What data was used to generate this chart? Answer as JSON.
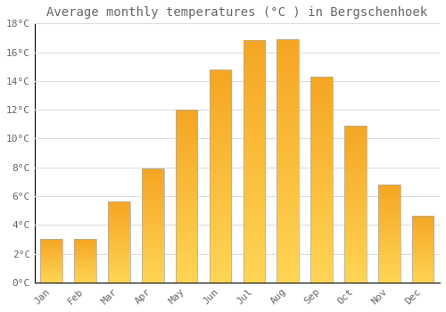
{
  "title": "Average monthly temperatures (°C ) in Bergschenhoek",
  "months": [
    "Jan",
    "Feb",
    "Mar",
    "Apr",
    "May",
    "Jun",
    "Jul",
    "Aug",
    "Sep",
    "Oct",
    "Nov",
    "Dec"
  ],
  "values": [
    3.0,
    3.0,
    5.6,
    7.9,
    12.0,
    14.8,
    16.8,
    16.9,
    14.3,
    10.9,
    6.8,
    4.6
  ],
  "bar_color_top": "#F5A623",
  "bar_color_bottom": "#FFD555",
  "bar_edge_color": "#AAAAAA",
  "ylim": [
    0,
    18
  ],
  "yticks": [
    0,
    2,
    4,
    6,
    8,
    10,
    12,
    14,
    16,
    18
  ],
  "ytick_labels": [
    "0°C",
    "2°C",
    "4°C",
    "6°C",
    "8°C",
    "10°C",
    "12°C",
    "14°C",
    "16°C",
    "18°C"
  ],
  "background_color": "#FFFFFF",
  "grid_color": "#DDDDDD",
  "title_fontsize": 10,
  "tick_fontsize": 8,
  "tick_color": "#666666",
  "bar_width": 0.65
}
